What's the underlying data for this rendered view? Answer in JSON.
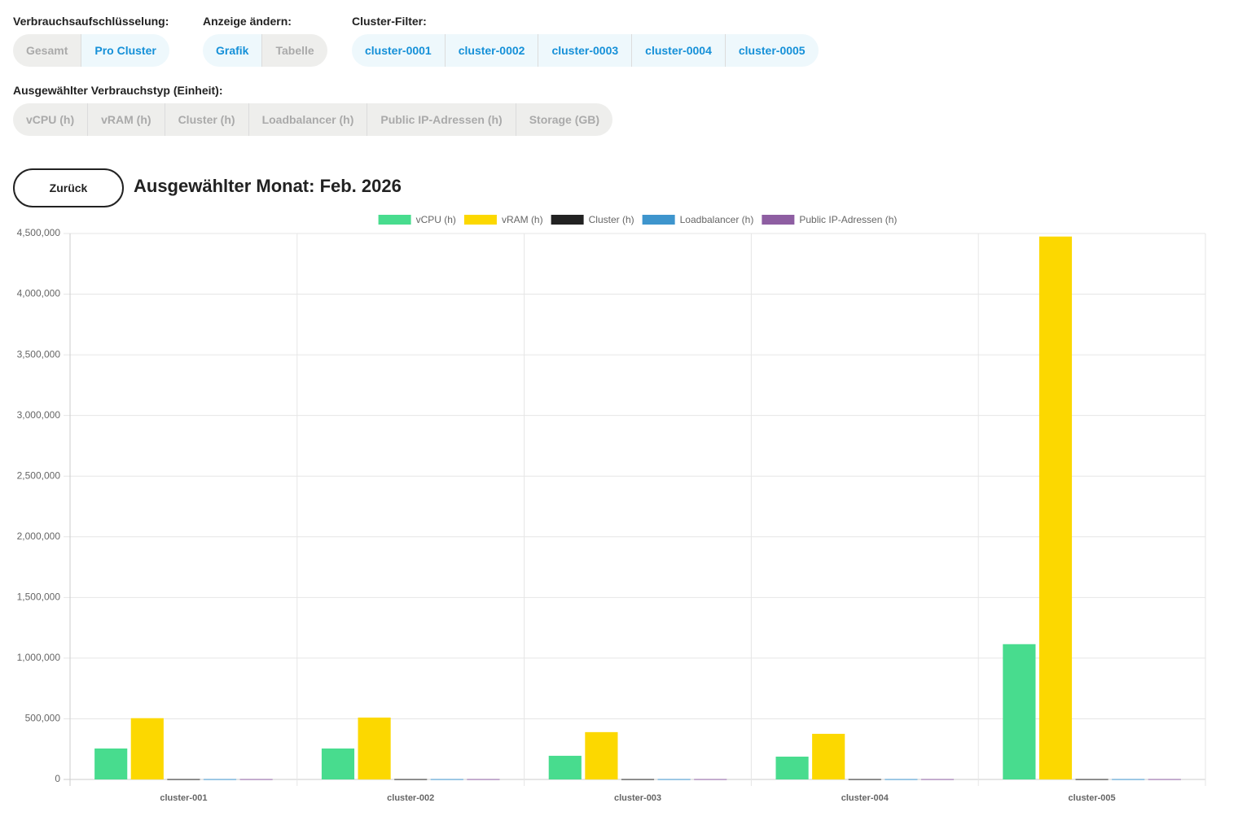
{
  "controls": {
    "breakdown": {
      "label": "Verbrauchsaufschlüsselung:",
      "options": [
        "Gesamt",
        "Pro Cluster"
      ],
      "active": [
        false,
        true
      ]
    },
    "view": {
      "label": "Anzeige ändern:",
      "options": [
        "Grafik",
        "Tabelle"
      ],
      "active": [
        true,
        false
      ]
    },
    "cluster_filter": {
      "label": "Cluster-Filter:",
      "options": [
        "cluster-0001",
        "cluster-0002",
        "cluster-0003",
        "cluster-0004",
        "cluster-0005"
      ],
      "active": [
        true,
        true,
        true,
        true,
        true
      ]
    },
    "usage_type": {
      "label": "Ausgewählter Verbrauchstyp (Einheit):",
      "options": [
        "vCPU (h)",
        "vRAM (h)",
        "Cluster (h)",
        "Loadbalancer (h)",
        "Public IP-Adressen (h)",
        "Storage (GB)"
      ],
      "active": [
        false,
        false,
        false,
        false,
        false,
        false
      ]
    }
  },
  "back_button": "Zurück",
  "heading": "Ausgewählter Monat: Feb. 2026",
  "chart_data": {
    "type": "bar",
    "categories": [
      "cluster-001",
      "cluster-002",
      "cluster-003",
      "cluster-004",
      "cluster-005"
    ],
    "series": [
      {
        "name": "vCPU (h)",
        "color": "#48dc8e",
        "values": [
          255000,
          255000,
          195000,
          188000,
          1115000
        ]
      },
      {
        "name": "vRAM (h)",
        "color": "#fcd800",
        "values": [
          505000,
          510000,
          390000,
          376000,
          4475000
        ]
      },
      {
        "name": "Cluster (h)",
        "color": "#222222",
        "values": [
          3000,
          3000,
          3000,
          3000,
          3000
        ]
      },
      {
        "name": "Loadbalancer (h)",
        "color": "#3e95cd",
        "values": [
          3000,
          3000,
          3000,
          3000,
          3000
        ]
      },
      {
        "name": "Public IP-Adressen (h)",
        "color": "#8e5ea2",
        "values": [
          3000,
          3000,
          3000,
          3000,
          3000
        ]
      }
    ],
    "ylim": [
      0,
      4500000
    ],
    "yticks": [
      0,
      {
        "value": 500000,
        "label": "500,000"
      },
      {
        "value": 1000000,
        "label": "1,000,000"
      },
      {
        "value": 1500000,
        "label": "1,500,000"
      },
      {
        "value": 2000000,
        "label": "2,000,000"
      },
      {
        "value": 2500000,
        "label": "2,500,000"
      },
      {
        "value": 3000000,
        "label": "3,000,000"
      },
      {
        "value": 3500000,
        "label": "3,500,000"
      },
      {
        "value": 4000000,
        "label": "4,000,000"
      },
      {
        "value": 4500000,
        "label": "4,500,000"
      }
    ],
    "grid": true,
    "legend": "top"
  }
}
